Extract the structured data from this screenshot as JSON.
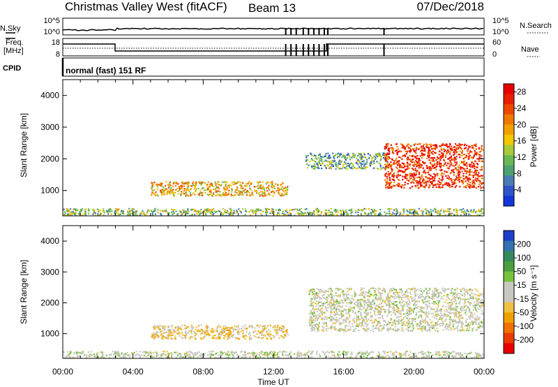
{
  "header": {
    "station": "Christmas Valley West (fitACF)",
    "beam": "Beam 13",
    "date": "07/Dec/2018"
  },
  "side_labels": {
    "nsky": "N.Sky",
    "nsearch": "N.Search",
    "freq_line1": "Freq.",
    "freq_line2": "[MHz]",
    "nave": "Nave",
    "cpid": "CPID",
    "cpid_value": "normal (fast) 151 RF"
  },
  "ticks": {
    "noise_left": [
      "10^5",
      "10^0"
    ],
    "noise_right": [
      "10^5",
      "10^0"
    ],
    "freq_left": [
      "18",
      "8"
    ],
    "freq_right": [
      "60",
      "0"
    ]
  },
  "colors": {
    "power_scale": [
      "#1436d8",
      "#2f54c8",
      "#4a7cb4",
      "#4ba26e",
      "#69b854",
      "#a9c83c",
      "#f2c600",
      "#f0a000",
      "#ee7800",
      "#ec4800",
      "#e81e00",
      "#e80000"
    ],
    "velocity_scale": [
      "#1c40c8",
      "#3272b0",
      "#358a60",
      "#4ba040",
      "#78c23c",
      "#c8c8c0",
      "#c8c8c0",
      "#f0c040",
      "#f0a000",
      "#f07000",
      "#ea3a00",
      "#e80000"
    ]
  },
  "chart_data": [
    {
      "type": "heatmap",
      "title": "",
      "xlabel": "Time UT",
      "ylabel": "Slant Range [km]",
      "xticks": [
        "00:00",
        "04:00",
        "08:00",
        "12:00",
        "16:00",
        "20:00",
        "00:00"
      ],
      "xlim_hours": [
        0,
        24
      ],
      "ylim": [
        200,
        4500
      ],
      "yticks": [
        1000,
        2000,
        3000,
        4000
      ],
      "colorbar": {
        "label": "Power [dB]",
        "ticks": [
          4,
          8,
          12,
          16,
          20,
          24,
          28
        ],
        "range": [
          0,
          30
        ]
      },
      "regions": [
        {
          "t_start": 5.0,
          "t_end": 12.8,
          "r_min": 850,
          "r_max": 1300,
          "level": 18
        },
        {
          "t_start": 13.8,
          "t_end": 18.5,
          "r_min": 1700,
          "r_max": 2200,
          "level": 10
        },
        {
          "t_start": 18.3,
          "t_end": 23.9,
          "r_min": 1100,
          "r_max": 2500,
          "level": 26
        },
        {
          "t_start": 0.0,
          "t_end": 24.0,
          "r_min": 200,
          "r_max": 450,
          "level": 12
        }
      ]
    },
    {
      "type": "heatmap",
      "title": "",
      "xlabel": "Time UT",
      "ylabel": "Slant Range [km]",
      "xticks": [
        "00:00",
        "04:00",
        "08:00",
        "12:00",
        "16:00",
        "20:00",
        "00:00"
      ],
      "xlim_hours": [
        0,
        24
      ],
      "ylim": [
        200,
        4500
      ],
      "yticks": [
        1000,
        2000,
        3000,
        4000
      ],
      "colorbar": {
        "label": "Velocity [m s⁻¹]",
        "ticks": [
          200,
          100,
          50,
          15,
          -15,
          -50,
          -100,
          -200
        ],
        "range": [
          -250,
          250
        ]
      },
      "regions": [
        {
          "t_start": 5.0,
          "t_end": 12.8,
          "r_min": 850,
          "r_max": 1300,
          "level": -60
        },
        {
          "t_start": 14.0,
          "t_end": 24.0,
          "r_min": 1100,
          "r_max": 2500,
          "level": 0
        },
        {
          "t_start": 0.0,
          "t_end": 24.0,
          "r_min": 200,
          "r_max": 450,
          "level": 10
        }
      ]
    }
  ]
}
